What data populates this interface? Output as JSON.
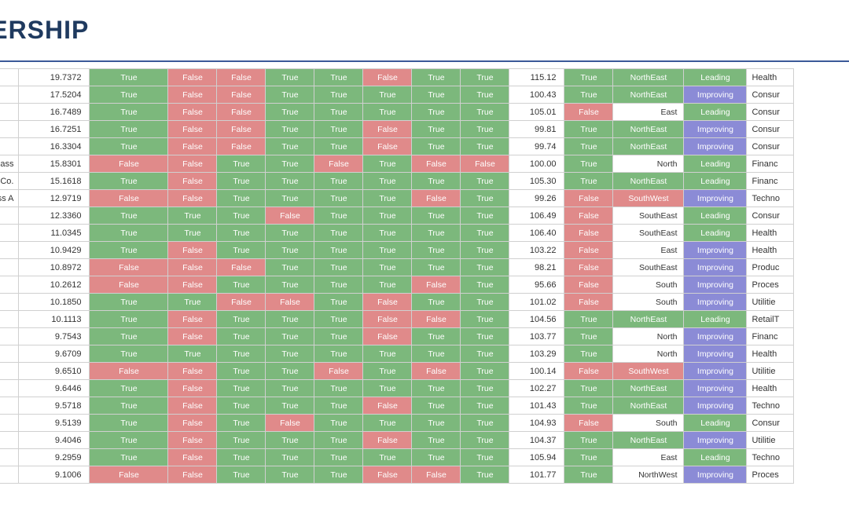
{
  "title": "ADERSHIP",
  "colors": {
    "true_bg": "#7cb87c",
    "false_bg": "#e08a8a",
    "improving_bg": "#8b8bd6",
    "leading_bg": "#7cb87c",
    "header_text": "#1f3a5f",
    "divider": "#3b5998"
  },
  "rows": [
    {
      "name": "",
      "val": "19.7372",
      "b": [
        "True",
        "False",
        "False",
        "True",
        "True",
        "False",
        "True",
        "True"
      ],
      "n2": "115.12",
      "b2": "True",
      "region": "NorthEast",
      "rclr": "green",
      "status": "Leading",
      "sector": "Health"
    },
    {
      "name": "",
      "val": "17.5204",
      "b": [
        "True",
        "False",
        "False",
        "True",
        "True",
        "True",
        "True",
        "True"
      ],
      "n2": "100.43",
      "b2": "True",
      "region": "NorthEast",
      "rclr": "green",
      "status": "Improving",
      "sector": "Consur"
    },
    {
      "name": "",
      "val": "16.7489",
      "b": [
        "True",
        "False",
        "False",
        "True",
        "True",
        "True",
        "True",
        "True"
      ],
      "n2": "105.01",
      "b2": "False",
      "region": "East",
      "rclr": "white",
      "status": "Leading",
      "sector": "Consur"
    },
    {
      "name": "",
      "val": "16.7251",
      "b": [
        "True",
        "False",
        "False",
        "True",
        "True",
        "False",
        "True",
        "True"
      ],
      "n2": "99.81",
      "b2": "True",
      "region": "NorthEast",
      "rclr": "green",
      "status": "Improving",
      "sector": "Consur"
    },
    {
      "name": "",
      "val": "16.3304",
      "b": [
        "True",
        "False",
        "False",
        "True",
        "True",
        "False",
        "True",
        "True"
      ],
      "n2": "99.74",
      "b2": "True",
      "region": "NorthEast",
      "rclr": "green",
      "status": "Improving",
      "sector": "Consur"
    },
    {
      "name": "ary Shares - Class",
      "val": "15.8301",
      "b": [
        "False",
        "False",
        "True",
        "True",
        "False",
        "True",
        "False",
        "False"
      ],
      "n2": "100.00",
      "b2": "True",
      "region": "North",
      "rclr": "white",
      "status": "Leading",
      "sector": "Financ"
    },
    {
      "name": "nt Co.",
      "val": "15.1618",
      "b": [
        "True",
        "False",
        "True",
        "True",
        "True",
        "True",
        "True",
        "True"
      ],
      "n2": "105.30",
      "b2": "True",
      "region": "NorthEast",
      "rclr": "green",
      "status": "Leading",
      "sector": "Financ"
    },
    {
      "name": "ss A",
      "val": "12.9719",
      "b": [
        "False",
        "False",
        "True",
        "True",
        "True",
        "True",
        "False",
        "True"
      ],
      "n2": "99.26",
      "b2": "False",
      "region": "SouthWest",
      "rclr": "red",
      "status": "Improving",
      "sector": "Techno"
    },
    {
      "name": "",
      "val": "12.3360",
      "b": [
        "True",
        "True",
        "True",
        "False",
        "True",
        "True",
        "True",
        "True"
      ],
      "n2": "106.49",
      "b2": "False",
      "region": "SouthEast",
      "rclr": "white",
      "status": "Leading",
      "sector": "Consur"
    },
    {
      "name": "",
      "val": "11.0345",
      "b": [
        "True",
        "True",
        "True",
        "True",
        "True",
        "True",
        "True",
        "True"
      ],
      "n2": "106.40",
      "b2": "False",
      "region": "SouthEast",
      "rclr": "white",
      "status": "Leading",
      "sector": "Health"
    },
    {
      "name": "",
      "val": "10.9429",
      "b": [
        "True",
        "False",
        "True",
        "True",
        "True",
        "True",
        "True",
        "True"
      ],
      "n2": "103.22",
      "b2": "False",
      "region": "East",
      "rclr": "white",
      "status": "Improving",
      "sector": "Health"
    },
    {
      "name": "",
      "val": "10.8972",
      "b": [
        "False",
        "False",
        "False",
        "True",
        "True",
        "True",
        "True",
        "True"
      ],
      "n2": "98.21",
      "b2": "False",
      "region": "SouthEast",
      "rclr": "white",
      "status": "Improving",
      "sector": "Produc"
    },
    {
      "name": "",
      "val": "10.2612",
      "b": [
        "False",
        "False",
        "True",
        "True",
        "True",
        "True",
        "False",
        "True"
      ],
      "n2": "95.66",
      "b2": "False",
      "region": "South",
      "rclr": "white",
      "status": "Improving",
      "sector": "Proces"
    },
    {
      "name": "",
      "val": "10.1850",
      "b": [
        "True",
        "True",
        "False",
        "False",
        "True",
        "False",
        "True",
        "True"
      ],
      "n2": "101.02",
      "b2": "False",
      "region": "South",
      "rclr": "white",
      "status": "Improving",
      "sector": "Utilitie"
    },
    {
      "name": "",
      "val": "10.1113",
      "b": [
        "True",
        "False",
        "True",
        "True",
        "True",
        "False",
        "False",
        "True"
      ],
      "n2": "104.56",
      "b2": "True",
      "region": "NorthEast",
      "rclr": "green",
      "status": "Leading",
      "sector": "RetailT"
    },
    {
      "name": "",
      "val": "9.7543",
      "b": [
        "True",
        "False",
        "True",
        "True",
        "True",
        "False",
        "True",
        "True"
      ],
      "n2": "103.77",
      "b2": "True",
      "region": "North",
      "rclr": "white",
      "status": "Improving",
      "sector": "Financ"
    },
    {
      "name": "",
      "val": "9.6709",
      "b": [
        "True",
        "True",
        "True",
        "True",
        "True",
        "True",
        "True",
        "True"
      ],
      "n2": "103.29",
      "b2": "True",
      "region": "North",
      "rclr": "white",
      "status": "Improving",
      "sector": "Health"
    },
    {
      "name": "",
      "val": "9.6510",
      "b": [
        "False",
        "False",
        "True",
        "True",
        "False",
        "True",
        "False",
        "True"
      ],
      "n2": "100.14",
      "b2": "False",
      "region": "SouthWest",
      "rclr": "red",
      "status": "Improving",
      "sector": "Utilitie"
    },
    {
      "name": "",
      "val": "9.6446",
      "b": [
        "True",
        "False",
        "True",
        "True",
        "True",
        "True",
        "True",
        "True"
      ],
      "n2": "102.27",
      "b2": "True",
      "region": "NorthEast",
      "rclr": "green",
      "status": "Improving",
      "sector": "Health"
    },
    {
      "name": "",
      "val": "9.5718",
      "b": [
        "True",
        "False",
        "True",
        "True",
        "True",
        "False",
        "True",
        "True"
      ],
      "n2": "101.43",
      "b2": "True",
      "region": "NorthEast",
      "rclr": "green",
      "status": "Improving",
      "sector": "Techno"
    },
    {
      "name": "",
      "val": "9.5139",
      "b": [
        "True",
        "False",
        "True",
        "False",
        "True",
        "True",
        "True",
        "True"
      ],
      "n2": "104.93",
      "b2": "False",
      "region": "South",
      "rclr": "white",
      "status": "Leading",
      "sector": "Consur"
    },
    {
      "name": "",
      "val": "9.4046",
      "b": [
        "True",
        "False",
        "True",
        "True",
        "True",
        "False",
        "True",
        "True"
      ],
      "n2": "104.37",
      "b2": "True",
      "region": "NorthEast",
      "rclr": "green",
      "status": "Improving",
      "sector": "Utilitie"
    },
    {
      "name": "",
      "val": "9.2959",
      "b": [
        "True",
        "False",
        "True",
        "True",
        "True",
        "True",
        "True",
        "True"
      ],
      "n2": "105.94",
      "b2": "True",
      "region": "East",
      "rclr": "white",
      "status": "Leading",
      "sector": "Techno"
    },
    {
      "name": "",
      "val": "9.1006",
      "b": [
        "False",
        "False",
        "True",
        "True",
        "True",
        "False",
        "False",
        "True"
      ],
      "n2": "101.77",
      "b2": "True",
      "region": "NorthWest",
      "rclr": "white",
      "status": "Improving",
      "sector": "Proces"
    }
  ]
}
